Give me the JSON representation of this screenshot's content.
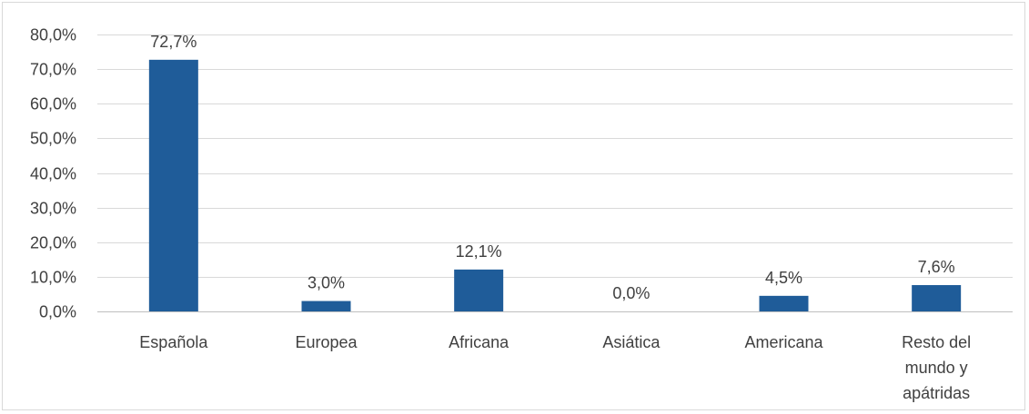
{
  "chart_data": {
    "type": "bar",
    "title": "",
    "xlabel": "",
    "ylabel": "",
    "categories": [
      [
        "Española"
      ],
      [
        "Europea"
      ],
      [
        "Africana"
      ],
      [
        "Asiática"
      ],
      [
        "Americana"
      ],
      [
        "Resto del",
        "mundo y",
        "apátridas"
      ]
    ],
    "values": [
      72.7,
      3.0,
      12.1,
      0.0,
      4.5,
      7.6
    ],
    "data_labels": [
      "72,7%",
      "3,0%",
      "12,1%",
      "0,0%",
      "4,5%",
      "7,6%"
    ],
    "y_ticks": [
      0,
      10,
      20,
      30,
      40,
      50,
      60,
      70,
      80
    ],
    "y_tick_labels": [
      "0,0%",
      "10,0%",
      "20,0%",
      "30,0%",
      "40,0%",
      "50,0%",
      "60,0%",
      "70,0%",
      "80,0%"
    ],
    "ylim": [
      0,
      80
    ],
    "grid": true,
    "legend": "none",
    "colors": {
      "bar": "#1f5c99",
      "grid": "#d9d9d9",
      "text": "#404040",
      "axis": "#bfbfbf"
    }
  }
}
